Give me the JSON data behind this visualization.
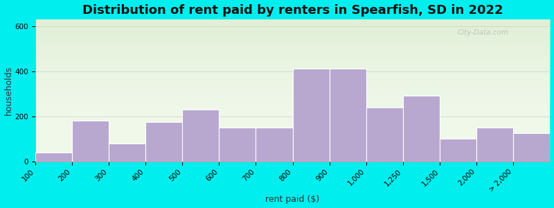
{
  "title": "Distribution of rent paid by renters in Spearfish, SD in 2022",
  "xlabel": "rent paid ($)",
  "ylabel": "households",
  "bar_labels": [
    "100",
    "200",
    "300",
    "400",
    "500",
    "600",
    "700",
    "800",
    "900",
    "1,000",
    "1,250",
    "1,500",
    "2,000",
    "> 2,000"
  ],
  "bar_heights": [
    40,
    180,
    80,
    175,
    230,
    150,
    150,
    410,
    410,
    240,
    290,
    100,
    150,
    125
  ],
  "bar_color": "#b8a8d0",
  "bar_edge_color": "#ffffff",
  "ylim": [
    0,
    630
  ],
  "yticks": [
    0,
    200,
    400,
    600
  ],
  "background_color": "#00eeee",
  "title_fontsize": 13,
  "axis_label_fontsize": 9,
  "tick_fontsize": 7.5,
  "watermark_text": "City-Data.com"
}
